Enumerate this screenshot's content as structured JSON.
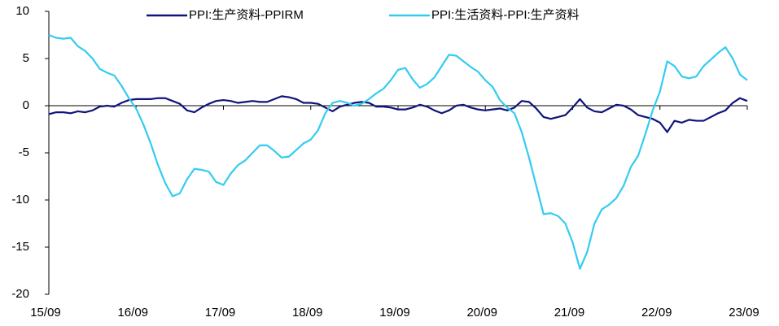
{
  "chart_data": {
    "type": "line",
    "legend": "top",
    "categories": [
      "15/09",
      null,
      null,
      null,
      null,
      null,
      null,
      null,
      null,
      null,
      null,
      null,
      "16/09",
      null,
      null,
      null,
      null,
      null,
      null,
      null,
      null,
      null,
      null,
      null,
      "17/09",
      null,
      null,
      null,
      null,
      null,
      null,
      null,
      null,
      null,
      null,
      null,
      "18/09",
      null,
      null,
      null,
      null,
      null,
      null,
      null,
      null,
      null,
      null,
      null,
      "19/09",
      null,
      null,
      null,
      null,
      null,
      null,
      null,
      null,
      null,
      null,
      null,
      "20/09",
      null,
      null,
      null,
      null,
      null,
      null,
      null,
      null,
      null,
      null,
      null,
      "21/09",
      null,
      null,
      null,
      null,
      null,
      null,
      null,
      null,
      null,
      null,
      null,
      "22/09",
      null,
      null,
      null,
      null,
      null,
      null,
      null,
      null,
      null,
      null,
      null,
      "23/09"
    ],
    "series": [
      {
        "name": "PPI:生产资料-PPIRM",
        "color": "#10137a",
        "values": [
          -0.9,
          -0.7,
          -0.7,
          -0.8,
          -0.6,
          -0.7,
          -0.5,
          -0.1,
          0,
          -0.1,
          0.3,
          0.6,
          0.7,
          0.7,
          0.7,
          0.8,
          0.8,
          0.5,
          0.2,
          -0.5,
          -0.7,
          -0.2,
          0.2,
          0.5,
          0.6,
          0.5,
          0.3,
          0.4,
          0.5,
          0.4,
          0.4,
          0.7,
          1,
          0.9,
          0.7,
          0.3,
          0.3,
          0.2,
          -0.2,
          -0.6,
          -0.1,
          0.1,
          0.3,
          0.4,
          0.3,
          -0.1,
          -0.1,
          -0.2,
          -0.4,
          -0.4,
          -0.2,
          0.1,
          -0.1,
          -0.5,
          -0.8,
          -0.5,
          0,
          0.1,
          -0.2,
          -0.4,
          -0.5,
          -0.4,
          -0.3,
          -0.5,
          -0.2,
          0.5,
          0.4,
          -0.3,
          -1.2,
          -1.4,
          -1.2,
          -1,
          -0.2,
          0.7,
          -0.2,
          -0.6,
          -0.7,
          -0.3,
          0.1,
          0,
          -0.4,
          -1,
          -1.2,
          -1.4,
          -1.8,
          -2.8,
          -1.6,
          -1.8,
          -1.5,
          -1.6,
          -1.6,
          -1.2,
          -0.8,
          -0.5,
          0.3,
          0.8,
          0.5
        ]
      },
      {
        "name": "PPI:生活资料-PPI:生产资料",
        "color": "#33ccf0",
        "values": [
          7.5,
          7.2,
          7.1,
          7.2,
          6.3,
          5.8,
          5.0,
          3.9,
          3.5,
          3.2,
          2.1,
          0.8,
          -0.3,
          -2,
          -4,
          -6.3,
          -8.2,
          -9.6,
          -9.3,
          -7.8,
          -6.7,
          -6.8,
          -7,
          -8.1,
          -8.4,
          -7.2,
          -6.3,
          -5.8,
          -5,
          -4.2,
          -4.2,
          -4.8,
          -5.5,
          -5.4,
          -4.7,
          -4,
          -3.6,
          -2.6,
          -0.8,
          0.3,
          0.5,
          0.3,
          0,
          0.2,
          0.7,
          1.3,
          1.8,
          2.7,
          3.8,
          4,
          2.8,
          1.9,
          2.3,
          3,
          4.2,
          5.4,
          5.3,
          4.7,
          4.1,
          3.6,
          2.7,
          2,
          0.6,
          -0.2,
          -0.8,
          -2.8,
          -5.5,
          -8.5,
          -11.5,
          -11.4,
          -11.7,
          -12.5,
          -14.5,
          -17.3,
          -15.5,
          -12.5,
          -11,
          -10.5,
          -9.8,
          -8.5,
          -6.5,
          -5.3,
          -3,
          -0.5,
          1.5,
          4.7,
          4.2,
          3.1,
          2.9,
          3.1,
          4.2,
          4.9,
          5.6,
          6.2,
          5,
          3.3,
          2.7
        ]
      }
    ],
    "ylim": [
      -20,
      10
    ],
    "yticks": [
      -20,
      -15,
      -10,
      -5,
      0,
      5,
      10
    ]
  }
}
